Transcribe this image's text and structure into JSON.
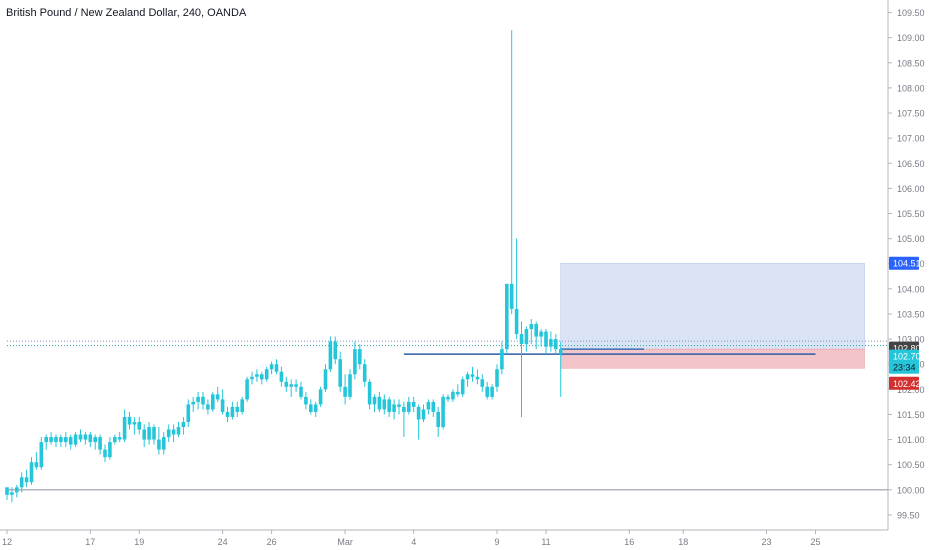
{
  "chart_data": {
    "type": "candlestick",
    "title": "British Pound / New Zealand Dollar, 240, OANDA",
    "ylim": [
      99.2,
      109.75
    ],
    "y_ticks": [
      "99.50",
      "100.00",
      "100.50",
      "101.00",
      "101.50",
      "102.00",
      "102.50",
      "103.00",
      "103.50",
      "104.00",
      "104.50",
      "105.00",
      "105.50",
      "106.00",
      "106.50",
      "107.00",
      "107.50",
      "108.00",
      "108.50",
      "109.00",
      "109.50"
    ],
    "x_ticks": [
      {
        "label": "12",
        "bar": 0
      },
      {
        "label": "17",
        "bar": 17
      },
      {
        "label": "19",
        "bar": 27
      },
      {
        "label": "24",
        "bar": 44
      },
      {
        "label": "26",
        "bar": 54
      },
      {
        "label": "Mar",
        "bar": 69
      },
      {
        "label": "4",
        "bar": 83
      },
      {
        "label": "9",
        "bar": 100
      },
      {
        "label": "11",
        "bar": 110
      },
      {
        "label": "16",
        "bar": 127
      },
      {
        "label": "18",
        "bar": 138
      },
      {
        "label": "23",
        "bar": 155
      },
      {
        "label": "25",
        "bar": 165
      }
    ],
    "ohlc": [
      [
        100.05,
        100.05,
        99.8,
        99.9
      ],
      [
        99.9,
        100.05,
        99.75,
        99.95
      ],
      [
        99.95,
        100.1,
        99.85,
        100.05
      ],
      [
        100.05,
        100.35,
        99.95,
        100.25
      ],
      [
        100.25,
        100.4,
        100.05,
        100.15
      ],
      [
        100.15,
        100.65,
        100.1,
        100.55
      ],
      [
        100.55,
        100.75,
        100.4,
        100.45
      ],
      [
        100.45,
        101.05,
        100.4,
        100.95
      ],
      [
        100.95,
        101.1,
        100.8,
        101.05
      ],
      [
        101.05,
        101.15,
        100.9,
        100.95
      ],
      [
        100.95,
        101.1,
        100.85,
        101.05
      ],
      [
        101.05,
        101.1,
        100.85,
        100.95
      ],
      [
        100.95,
        101.15,
        100.85,
        101.05
      ],
      [
        101.05,
        101.1,
        100.8,
        100.9
      ],
      [
        100.9,
        101.15,
        100.85,
        101.1
      ],
      [
        101.1,
        101.2,
        100.95,
        101.0
      ],
      [
        101.0,
        101.15,
        100.9,
        101.1
      ],
      [
        101.1,
        101.15,
        100.85,
        100.95
      ],
      [
        100.95,
        101.1,
        100.8,
        101.05
      ],
      [
        101.05,
        101.1,
        100.7,
        100.8
      ],
      [
        100.8,
        100.9,
        100.55,
        100.65
      ],
      [
        100.65,
        101.05,
        100.6,
        100.95
      ],
      [
        100.95,
        101.1,
        100.9,
        101.05
      ],
      [
        101.05,
        101.15,
        100.95,
        101.0
      ],
      [
        101.0,
        101.6,
        100.95,
        101.45
      ],
      [
        101.45,
        101.55,
        101.2,
        101.3
      ],
      [
        101.3,
        101.45,
        101.1,
        101.35
      ],
      [
        101.35,
        101.45,
        101.1,
        101.2
      ],
      [
        101.2,
        101.3,
        100.85,
        101.0
      ],
      [
        101.0,
        101.35,
        100.9,
        101.25
      ],
      [
        101.25,
        101.3,
        100.9,
        101.0
      ],
      [
        101.0,
        101.25,
        100.7,
        100.8
      ],
      [
        100.8,
        101.15,
        100.7,
        101.05
      ],
      [
        101.05,
        101.3,
        100.95,
        101.2
      ],
      [
        101.2,
        101.3,
        100.95,
        101.1
      ],
      [
        101.1,
        101.35,
        101.05,
        101.25
      ],
      [
        101.25,
        101.45,
        101.1,
        101.35
      ],
      [
        101.35,
        101.8,
        101.25,
        101.7
      ],
      [
        101.7,
        101.85,
        101.55,
        101.75
      ],
      [
        101.75,
        101.95,
        101.6,
        101.85
      ],
      [
        101.85,
        101.95,
        101.6,
        101.7
      ],
      [
        101.7,
        101.8,
        101.5,
        101.6
      ],
      [
        101.6,
        101.95,
        101.55,
        101.9
      ],
      [
        101.9,
        102.05,
        101.75,
        101.8
      ],
      [
        101.8,
        102.0,
        101.5,
        101.55
      ],
      [
        101.55,
        101.65,
        101.35,
        101.45
      ],
      [
        101.45,
        101.75,
        101.4,
        101.65
      ],
      [
        101.65,
        101.75,
        101.45,
        101.55
      ],
      [
        101.55,
        101.85,
        101.5,
        101.8
      ],
      [
        101.8,
        102.25,
        101.75,
        102.2
      ],
      [
        102.2,
        102.35,
        102.1,
        102.25
      ],
      [
        102.25,
        102.4,
        102.15,
        102.3
      ],
      [
        102.3,
        102.35,
        102.1,
        102.2
      ],
      [
        102.2,
        102.45,
        102.15,
        102.4
      ],
      [
        102.4,
        102.55,
        102.3,
        102.5
      ],
      [
        102.5,
        102.6,
        102.3,
        102.35
      ],
      [
        102.35,
        102.45,
        102.05,
        102.15
      ],
      [
        102.15,
        102.25,
        101.95,
        102.05
      ],
      [
        102.05,
        102.2,
        101.85,
        102.1
      ],
      [
        102.1,
        102.2,
        101.95,
        102.05
      ],
      [
        102.05,
        102.15,
        101.8,
        101.85
      ],
      [
        101.85,
        101.95,
        101.6,
        101.7
      ],
      [
        101.7,
        101.8,
        101.5,
        101.55
      ],
      [
        101.55,
        101.75,
        101.45,
        101.7
      ],
      [
        101.7,
        102.05,
        101.65,
        102.0
      ],
      [
        102.0,
        102.5,
        101.95,
        102.4
      ],
      [
        102.4,
        103.05,
        102.35,
        102.95
      ],
      [
        102.95,
        103.05,
        102.5,
        102.6
      ],
      [
        102.6,
        102.75,
        101.95,
        102.05
      ],
      [
        102.05,
        102.3,
        101.7,
        101.85
      ],
      [
        101.85,
        102.4,
        101.8,
        102.3
      ],
      [
        102.3,
        102.95,
        102.2,
        102.8
      ],
      [
        102.8,
        102.9,
        102.4,
        102.5
      ],
      [
        102.5,
        102.6,
        102.05,
        102.15
      ],
      [
        102.15,
        102.2,
        101.6,
        101.7
      ],
      [
        101.7,
        101.9,
        101.55,
        101.85
      ],
      [
        101.85,
        101.95,
        101.55,
        101.6
      ],
      [
        101.6,
        101.9,
        101.5,
        101.8
      ],
      [
        101.8,
        101.85,
        101.45,
        101.55
      ],
      [
        101.55,
        101.8,
        101.4,
        101.7
      ],
      [
        101.7,
        101.8,
        101.5,
        101.65
      ],
      [
        101.65,
        101.75,
        101.05,
        101.55
      ],
      [
        101.55,
        101.85,
        101.5,
        101.75
      ],
      [
        101.75,
        101.85,
        101.55,
        101.65
      ],
      [
        101.65,
        101.7,
        101.0,
        101.4
      ],
      [
        101.4,
        101.7,
        101.35,
        101.6
      ],
      [
        101.6,
        101.8,
        101.5,
        101.75
      ],
      [
        101.75,
        101.8,
        101.45,
        101.55
      ],
      [
        101.55,
        101.65,
        101.05,
        101.25
      ],
      [
        101.25,
        101.9,
        101.2,
        101.85
      ],
      [
        101.85,
        101.9,
        101.75,
        101.8
      ],
      [
        101.8,
        102.0,
        101.75,
        101.95
      ],
      [
        101.95,
        102.1,
        101.85,
        101.9
      ],
      [
        101.9,
        102.25,
        101.85,
        102.2
      ],
      [
        102.2,
        102.35,
        102.05,
        102.3
      ],
      [
        102.3,
        102.45,
        102.15,
        102.25
      ],
      [
        102.25,
        102.4,
        102.1,
        102.2
      ],
      [
        102.2,
        102.3,
        101.95,
        102.05
      ],
      [
        102.05,
        102.15,
        101.8,
        101.85
      ],
      [
        101.85,
        102.1,
        101.8,
        102.05
      ],
      [
        102.05,
        102.5,
        101.95,
        102.4
      ],
      [
        102.4,
        102.95,
        102.3,
        102.8
      ],
      [
        102.8,
        104.1,
        102.7,
        104.1
      ],
      [
        104.1,
        109.15,
        103.5,
        103.6
      ],
      [
        103.6,
        105.0,
        103.0,
        103.1
      ],
      [
        103.1,
        103.35,
        101.45,
        102.9
      ],
      [
        102.9,
        103.25,
        102.75,
        103.2
      ],
      [
        103.2,
        103.4,
        102.9,
        103.3
      ],
      [
        103.3,
        103.35,
        102.8,
        103.05
      ],
      [
        103.05,
        103.2,
        102.85,
        103.15
      ],
      [
        103.15,
        103.2,
        102.7,
        102.85
      ],
      [
        102.85,
        103.15,
        102.75,
        103.0
      ],
      [
        103.0,
        103.1,
        102.7,
        102.8
      ],
      [
        102.8,
        102.95,
        101.85,
        102.7
      ]
    ],
    "horizontal_levels": [
      {
        "y": 102.96,
        "style": "dotted",
        "color": "#7b8fbf",
        "x_from": 0
      },
      {
        "y": 102.87,
        "style": "dotted",
        "color": "#26a69a",
        "x_from": 0
      },
      {
        "y": 102.8,
        "style": "solid",
        "color": "#3a6fb0",
        "x_from": 113,
        "x_to": 130
      },
      {
        "y": 102.7,
        "style": "solid",
        "color": "#2a5ba8",
        "x_from": 81,
        "x_to": 165
      },
      {
        "y": 100.0,
        "style": "solid",
        "color": "#b2b5be",
        "x_from": 0
      }
    ],
    "position_box": {
      "from_bar": 113,
      "to_bar": 175,
      "entry": 102.8,
      "target": 104.51,
      "stop": 102.42,
      "profit_color": "#dbe4f5",
      "loss_color": "#f4c5c8"
    },
    "price_labels": [
      {
        "text": "104.51",
        "y": 104.51,
        "bg": "#2962ff",
        "fg": "#ffffff"
      },
      {
        "text": "102.80",
        "y": 102.82,
        "bg": "#444444",
        "fg": "#ffffff"
      },
      {
        "text": "102.70",
        "y": 102.66,
        "bg": "#26c6da",
        "fg": "#ffffff"
      },
      {
        "text": "23:34",
        "y": 102.44,
        "bg": "#26c6da",
        "fg": "#131722"
      },
      {
        "text": "102.42",
        "y": 102.12,
        "bg": "#d32f2f",
        "fg": "#ffffff"
      }
    ],
    "colors": {
      "up": "#26c6da",
      "down": "#26c6da",
      "grid": "#e0e3eb",
      "axis_text": "#787b86",
      "border": "#b2b5be"
    }
  }
}
